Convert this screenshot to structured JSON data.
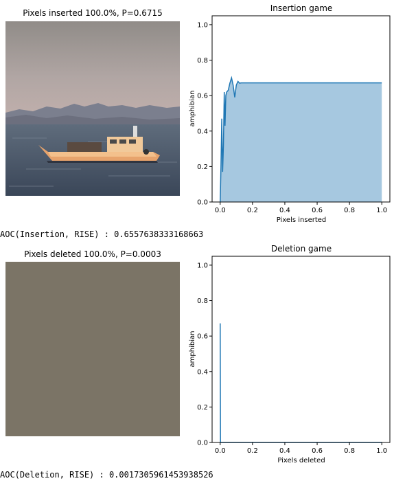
{
  "insertion": {
    "image_title": "Pixels inserted 100.0%, P=0.6715",
    "aoc_text": "AOC(Insertion, RISE) : 0.6557638333168663"
  },
  "deletion": {
    "image_title": "Pixels deleted 100.0%, P=0.0003",
    "aoc_text": "AOC(Deletion, RISE) : 0.0017305961453938526",
    "image_fill": "#7b7466"
  },
  "colors": {
    "line": "#1f77b4",
    "fill": "#a6c8e0"
  },
  "chart_data": [
    {
      "type": "area",
      "title": "Insertion game",
      "xlabel": "Pixels inserted",
      "ylabel": "amphibian",
      "xlim": [
        -0.05,
        1.05
      ],
      "ylim": [
        0.0,
        1.05
      ],
      "xticks": [
        "0.0",
        "0.2",
        "0.4",
        "0.6",
        "0.8",
        "1.0"
      ],
      "yticks": [
        "0.0",
        "0.2",
        "0.4",
        "0.6",
        "0.8",
        "1.0"
      ],
      "grid": false,
      "series": [
        {
          "x": [
            0.0,
            0.005,
            0.01,
            0.015,
            0.02,
            0.025,
            0.03,
            0.035,
            0.04,
            0.05,
            0.06,
            0.07,
            0.08,
            0.09,
            0.1,
            0.11,
            0.12,
            0.13,
            0.15,
            0.2,
            0.3,
            0.4,
            0.5,
            0.6,
            0.7,
            0.8,
            0.9,
            1.0
          ],
          "y": [
            0.0,
            0.2,
            0.47,
            0.17,
            0.32,
            0.62,
            0.43,
            0.6,
            0.62,
            0.63,
            0.67,
            0.7,
            0.66,
            0.59,
            0.66,
            0.68,
            0.67,
            0.672,
            0.672,
            0.672,
            0.672,
            0.672,
            0.672,
            0.672,
            0.672,
            0.672,
            0.672,
            0.672
          ]
        }
      ]
    },
    {
      "type": "line",
      "title": "Deletion game",
      "xlabel": "Pixels deleted",
      "ylabel": "amphibian",
      "xlim": [
        -0.05,
        1.05
      ],
      "ylim": [
        0.0,
        1.05
      ],
      "xticks": [
        "0.0",
        "0.2",
        "0.4",
        "0.6",
        "0.8",
        "1.0"
      ],
      "yticks": [
        "0.0",
        "0.2",
        "0.4",
        "0.6",
        "0.8",
        "1.0"
      ],
      "grid": false,
      "series": [
        {
          "x": [
            0.0,
            0.002,
            0.005,
            0.01,
            0.05,
            0.1,
            0.2,
            0.4,
            0.6,
            0.8,
            1.0
          ],
          "y": [
            0.672,
            0.0,
            0.0003,
            0.0003,
            0.0003,
            0.0003,
            0.0003,
            0.0003,
            0.0003,
            0.0003,
            0.0003
          ]
        }
      ]
    }
  ]
}
